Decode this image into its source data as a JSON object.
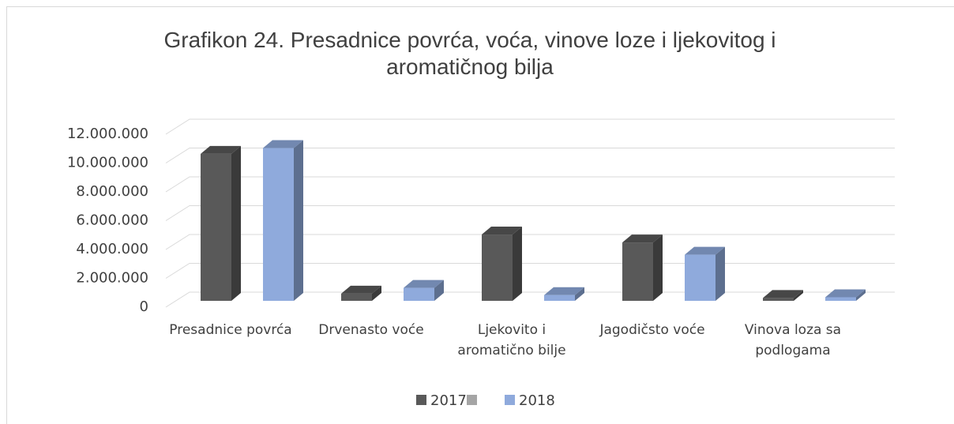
{
  "chart_data": {
    "type": "bar3d",
    "title": "Grafikon 24. Presadnice povrća, voća, vinove loze i ljekovitog i aromatičnog bilja",
    "categories": [
      "Presadnice povrća",
      "Drvenasto voće",
      "Ljekovito i aromatično bilje",
      "Jagodičsto voće",
      "Vinova loza sa podlogama"
    ],
    "series": [
      {
        "name": "2017",
        "color": "#595959",
        "values": [
          10200000,
          500000,
          4600000,
          4050000,
          200000
        ]
      },
      {
        "name": "2018",
        "color": "#8faadc",
        "values": [
          10600000,
          900000,
          400000,
          3200000,
          250000
        ]
      }
    ],
    "ylim": [
      0,
      12000000
    ],
    "yticks": [
      0,
      {
        "value": 2000000,
        "label": "2.000.000"
      },
      {
        "value": 4000000,
        "label": "4.000.000"
      },
      {
        "value": 6000000,
        "label": "6.000.000"
      },
      {
        "value": 8000000,
        "label": "8.000.000"
      },
      {
        "value": 10000000,
        "label": "10.000.000"
      },
      {
        "value": 12000000,
        "label": "12.000.000"
      }
    ],
    "grid": true
  }
}
